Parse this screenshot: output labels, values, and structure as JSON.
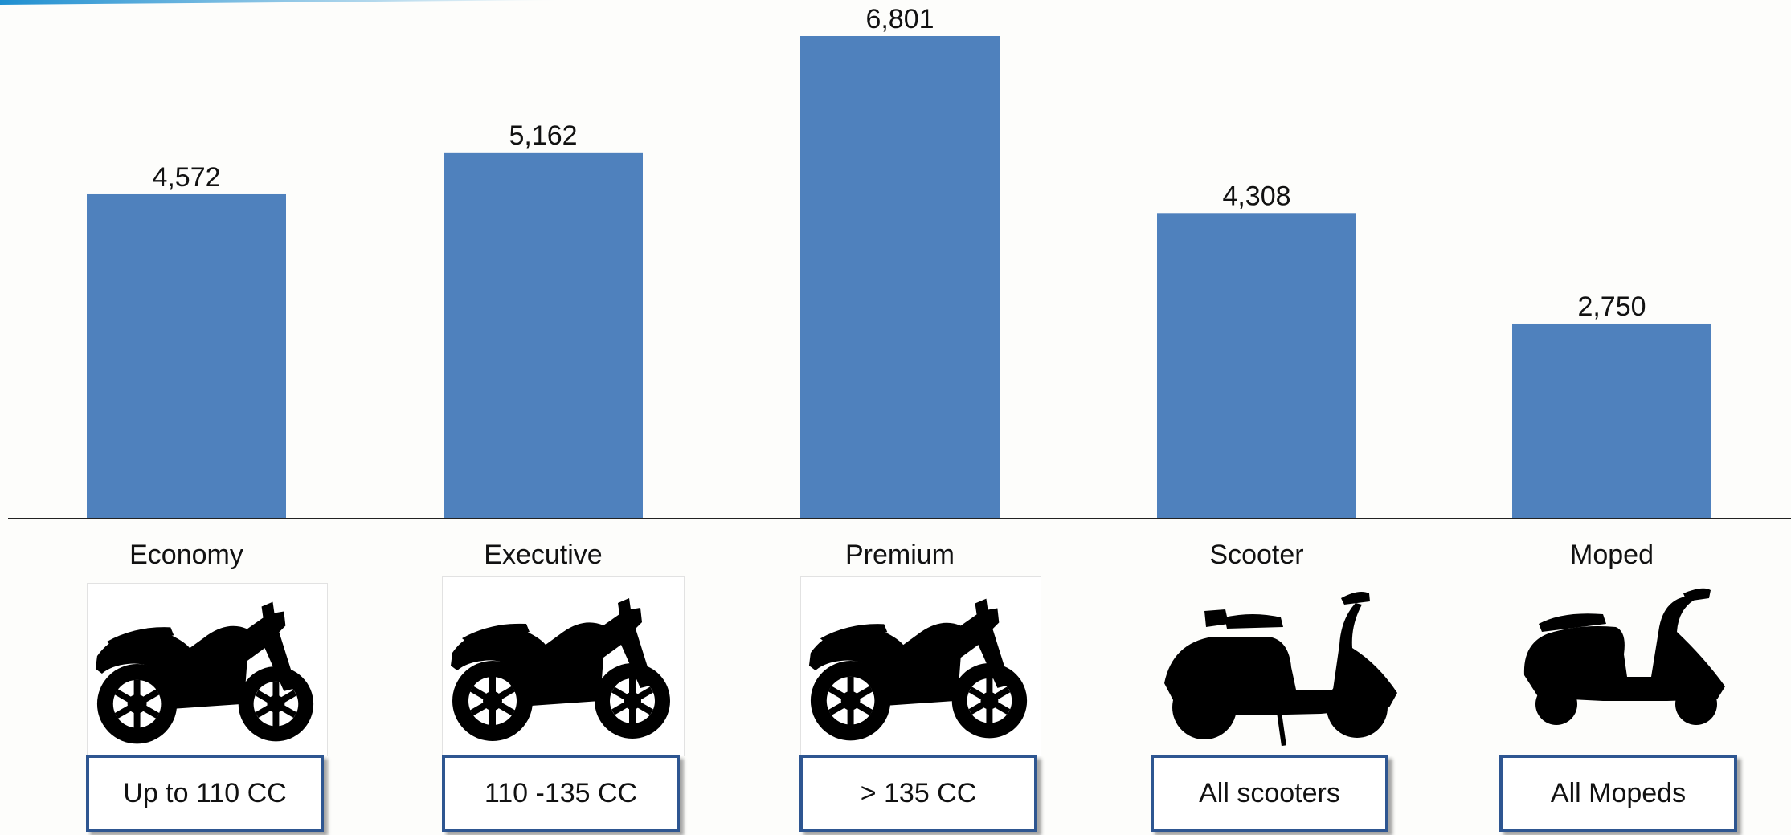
{
  "colors": {
    "bar": "#4f81bd",
    "axis": "#222222",
    "box_border": "#2e5691",
    "accent": "#1f8fd0"
  },
  "chart_data": {
    "type": "bar",
    "categories": [
      "Economy",
      "Executive",
      "Premium",
      "Scooter",
      "Moped"
    ],
    "values": [
      4572,
      5162,
      6801,
      4308,
      2750
    ],
    "value_labels": [
      "4,572",
      "5,162",
      "6,801",
      "4,308",
      "2,750"
    ],
    "ylim": [
      0,
      7000
    ],
    "grid": false,
    "legend": "none"
  },
  "segments": [
    {
      "icon": "motorcycle-icon",
      "range_label": "Up to 110 CC"
    },
    {
      "icon": "motorcycle-icon",
      "range_label": "110 -135 CC"
    },
    {
      "icon": "motorcycle-icon",
      "range_label": "> 135 CC"
    },
    {
      "icon": "scooter-icon",
      "range_label": "All scooters"
    },
    {
      "icon": "moped-icon",
      "range_label": "All Mopeds"
    }
  ]
}
